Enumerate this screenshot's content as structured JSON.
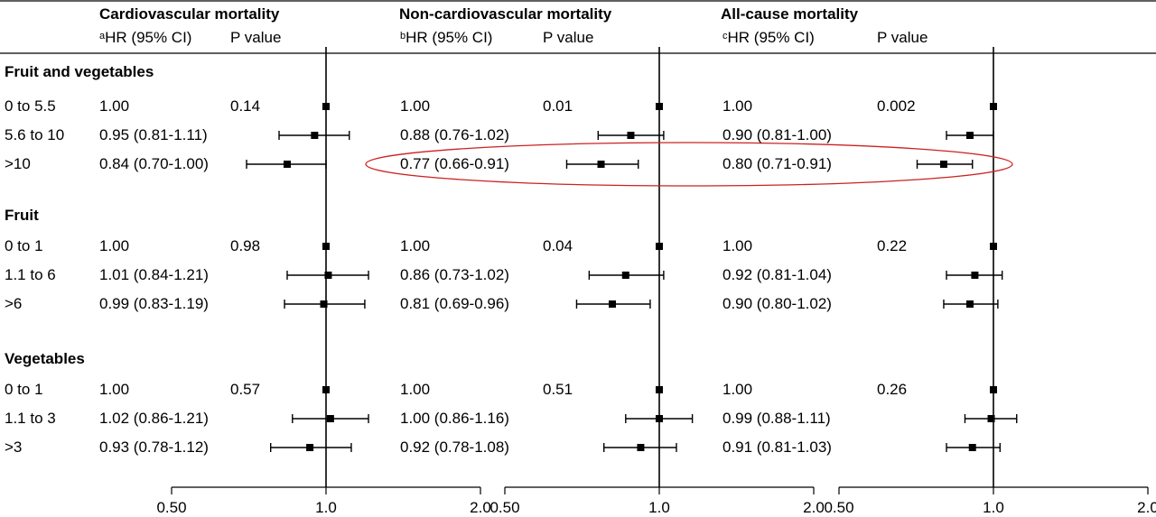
{
  "chart_data": {
    "type": "forest",
    "columns": [
      {
        "title": "Cardiovascular mortality",
        "ci_mark": "a",
        "ci_label": "HR (95% CI)",
        "p_label": "P value"
      },
      {
        "title": "Non-cardiovascular mortality",
        "ci_mark": "b",
        "ci_label": "HR (95% CI)",
        "p_label": "P value"
      },
      {
        "title": "All-cause mortality",
        "ci_mark": "c",
        "ci_label": "HR (95% CI)",
        "p_label": "P value"
      }
    ],
    "axis": {
      "scale": "log",
      "min": 0.5,
      "max": 2.0,
      "ref": 1.0,
      "ticks": [
        0.5,
        1.0,
        2.0
      ],
      "tick_labels": [
        "0.50",
        "1.0",
        "2.0"
      ]
    },
    "groups": [
      {
        "name": "Fruit and vegetables",
        "rows": [
          {
            "label": "0 to 5.5",
            "cells": [
              {
                "text": "1.00",
                "p": "0.14",
                "hr": 1.0,
                "lo": 1.0,
                "hi": 1.0
              },
              {
                "text": "1.00",
                "p": "0.01",
                "hr": 1.0,
                "lo": 1.0,
                "hi": 1.0
              },
              {
                "text": "1.00",
                "p": "0.002",
                "hr": 1.0,
                "lo": 1.0,
                "hi": 1.0
              }
            ]
          },
          {
            "label": "5.6 to 10",
            "cells": [
              {
                "text": "0.95 (0.81-1.11)",
                "p": "",
                "hr": 0.95,
                "lo": 0.81,
                "hi": 1.11
              },
              {
                "text": "0.88 (0.76-1.02)",
                "p": "",
                "hr": 0.88,
                "lo": 0.76,
                "hi": 1.02
              },
              {
                "text": "0.90 (0.81-1.00)",
                "p": "",
                "hr": 0.9,
                "lo": 0.81,
                "hi": 1.0
              }
            ]
          },
          {
            "label": ">10",
            "cells": [
              {
                "text": "0.84 (0.70-1.00)",
                "p": "",
                "hr": 0.84,
                "lo": 0.7,
                "hi": 1.0
              },
              {
                "text": "0.77 (0.66-0.91)",
                "p": "",
                "hr": 0.77,
                "lo": 0.66,
                "hi": 0.91
              },
              {
                "text": "0.80 (0.71-0.91)",
                "p": "",
                "hr": 0.8,
                "lo": 0.71,
                "hi": 0.91
              }
            ]
          }
        ]
      },
      {
        "name": "Fruit",
        "rows": [
          {
            "label": "0 to 1",
            "cells": [
              {
                "text": "1.00",
                "p": "0.98",
                "hr": 1.0,
                "lo": 1.0,
                "hi": 1.0
              },
              {
                "text": "1.00",
                "p": "0.04",
                "hr": 1.0,
                "lo": 1.0,
                "hi": 1.0
              },
              {
                "text": "1.00",
                "p": "0.22",
                "hr": 1.0,
                "lo": 1.0,
                "hi": 1.0
              }
            ]
          },
          {
            "label": "1.1 to 6",
            "cells": [
              {
                "text": "1.01 (0.84-1.21)",
                "p": "",
                "hr": 1.01,
                "lo": 0.84,
                "hi": 1.21
              },
              {
                "text": "0.86 (0.73-1.02)",
                "p": "",
                "hr": 0.86,
                "lo": 0.73,
                "hi": 1.02
              },
              {
                "text": "0.92 (0.81-1.04)",
                "p": "",
                "hr": 0.92,
                "lo": 0.81,
                "hi": 1.04
              }
            ]
          },
          {
            "label": ">6",
            "cells": [
              {
                "text": "0.99 (0.83-1.19)",
                "p": "",
                "hr": 0.99,
                "lo": 0.83,
                "hi": 1.19
              },
              {
                "text": "0.81 (0.69-0.96)",
                "p": "",
                "hr": 0.81,
                "lo": 0.69,
                "hi": 0.96
              },
              {
                "text": "0.90 (0.80-1.02)",
                "p": "",
                "hr": 0.9,
                "lo": 0.8,
                "hi": 1.02
              }
            ]
          }
        ]
      },
      {
        "name": "Vegetables",
        "rows": [
          {
            "label": "0 to 1",
            "cells": [
              {
                "text": "1.00",
                "p": "0.57",
                "hr": 1.0,
                "lo": 1.0,
                "hi": 1.0
              },
              {
                "text": "1.00",
                "p": "0.51",
                "hr": 1.0,
                "lo": 1.0,
                "hi": 1.0
              },
              {
                "text": "1.00",
                "p": "0.26",
                "hr": 1.0,
                "lo": 1.0,
                "hi": 1.0
              }
            ]
          },
          {
            "label": "1.1 to 3",
            "cells": [
              {
                "text": "1.02 (0.86-1.21)",
                "p": "",
                "hr": 1.02,
                "lo": 0.86,
                "hi": 1.21
              },
              {
                "text": "1.00 (0.86-1.16)",
                "p": "",
                "hr": 1.0,
                "lo": 0.86,
                "hi": 1.16
              },
              {
                "text": "0.99 (0.88-1.11)",
                "p": "",
                "hr": 0.99,
                "lo": 0.88,
                "hi": 1.11
              }
            ]
          },
          {
            "label": ">3",
            "cells": [
              {
                "text": "0.93 (0.78-1.12)",
                "p": "",
                "hr": 0.93,
                "lo": 0.78,
                "hi": 1.12
              },
              {
                "text": "0.92 (0.78-1.08)",
                "p": "",
                "hr": 0.92,
                "lo": 0.78,
                "hi": 1.08
              },
              {
                "text": "0.91 (0.81-1.03)",
                "p": "",
                "hr": 0.91,
                "lo": 0.81,
                "hi": 1.03
              }
            ]
          }
        ]
      }
    ],
    "highlight": {
      "group": 0,
      "row": 2,
      "columns": [
        1,
        2
      ],
      "color": "#cc2222"
    },
    "colors": {
      "ink": "#000000",
      "highlight": "#cc2222"
    }
  }
}
